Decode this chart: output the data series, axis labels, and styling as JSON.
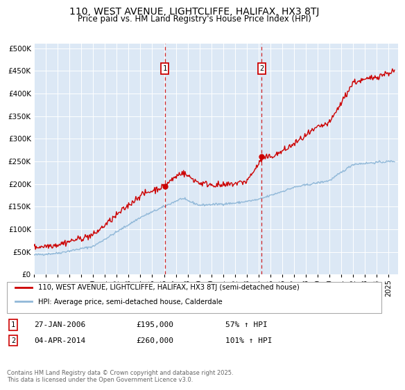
{
  "title": "110, WEST AVENUE, LIGHTCLIFFE, HALIFAX, HX3 8TJ",
  "subtitle": "Price paid vs. HM Land Registry's House Price Index (HPI)",
  "title_fontsize": 10,
  "subtitle_fontsize": 8.5,
  "ylabel_ticks": [
    "£0",
    "£50K",
    "£100K",
    "£150K",
    "£200K",
    "£250K",
    "£300K",
    "£350K",
    "£400K",
    "£450K",
    "£500K"
  ],
  "ytick_values": [
    0,
    50000,
    100000,
    150000,
    200000,
    250000,
    300000,
    350000,
    400000,
    450000,
    500000
  ],
  "ylim": [
    0,
    510000
  ],
  "xlim_start": 1995.0,
  "xlim_end": 2025.8,
  "background_color": "#ffffff",
  "plot_bg_color": "#dce8f5",
  "grid_color": "#ffffff",
  "line1_color": "#cc0000",
  "line2_color": "#90b8d8",
  "marker1_date": 2006.07,
  "marker2_date": 2014.27,
  "marker1_value": 195000,
  "marker2_value": 260000,
  "vline_color": "#cc0000",
  "annotation_box_color": "#cc0000",
  "legend_label1": "110, WEST AVENUE, LIGHTCLIFFE, HALIFAX, HX3 8TJ (semi-detached house)",
  "legend_label2": "HPI: Average price, semi-detached house, Calderdale",
  "table_row1": [
    "1",
    "27-JAN-2006",
    "£195,000",
    "57% ↑ HPI"
  ],
  "table_row2": [
    "2",
    "04-APR-2014",
    "£260,000",
    "101% ↑ HPI"
  ],
  "footer": "Contains HM Land Registry data © Crown copyright and database right 2025.\nThis data is licensed under the Open Government Licence v3.0.",
  "xtick_years": [
    1995,
    1996,
    1997,
    1998,
    1999,
    2000,
    2001,
    2002,
    2003,
    2004,
    2005,
    2006,
    2007,
    2008,
    2009,
    2010,
    2011,
    2012,
    2013,
    2014,
    2015,
    2016,
    2017,
    2018,
    2019,
    2020,
    2021,
    2022,
    2023,
    2024,
    2025
  ]
}
